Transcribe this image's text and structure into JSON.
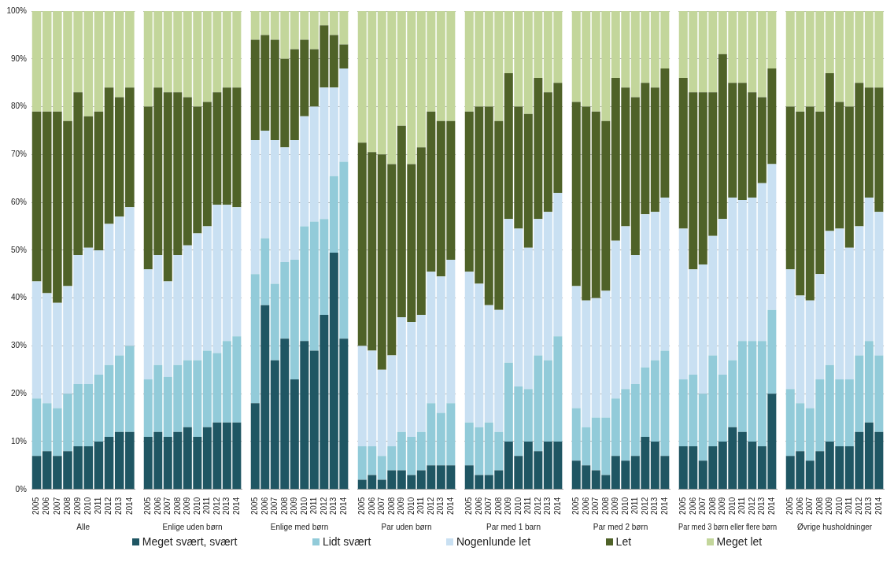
{
  "chart_data": [
    {
      "type": "bar",
      "stacked": true,
      "xlabel": "Alle",
      "categories": [
        "2005",
        "2006",
        "2007",
        "2008",
        "2009",
        "2010",
        "2011",
        "2012",
        "2013",
        "2014"
      ],
      "ylim": [
        0,
        100
      ],
      "yticks": [
        {
          "value": 0,
          "label": "0%"
        },
        {
          "value": 10,
          "label": "10%"
        },
        {
          "value": 20,
          "label": "20%"
        },
        {
          "value": 30,
          "label": "30%"
        },
        {
          "value": 40,
          "label": "40%"
        },
        {
          "value": 50,
          "label": "50%"
        },
        {
          "value": 60,
          "label": "60%"
        },
        {
          "value": 70,
          "label": "70%"
        },
        {
          "value": 80,
          "label": "80%"
        },
        {
          "value": 90,
          "label": "90%"
        },
        {
          "value": 100,
          "label": "100%"
        }
      ],
      "grid": "y",
      "legend": "bottom",
      "series": [
        {
          "name": "Meget svært, svært",
          "color": "#1f5663",
          "values": [
            7,
            8,
            7,
            8,
            9,
            9,
            10,
            11,
            12,
            12
          ]
        },
        {
          "name": "Lidt svært",
          "color": "#92cbd9",
          "values": [
            12,
            10,
            10,
            12,
            13,
            13,
            14,
            15,
            16,
            18
          ]
        },
        {
          "name": "Nogenlunde let",
          "color": "#c9e0f2",
          "values": [
            24.5,
            23,
            22,
            22.5,
            27,
            28.5,
            26,
            29.5,
            29,
            29
          ]
        },
        {
          "name": "Let",
          "color": "#4f6228",
          "values": [
            35.5,
            38,
            40,
            34.5,
            34,
            27.5,
            29,
            28.5,
            25,
            25
          ]
        },
        {
          "name": "Meget let",
          "color": "#c3d69b",
          "values": [
            21,
            21,
            21,
            23,
            17,
            22,
            21,
            16,
            18,
            16
          ]
        }
      ]
    },
    {
      "type": "bar",
      "stacked": true,
      "xlabel": "Enlige uden børn",
      "categories": [
        "2005",
        "2006",
        "2007",
        "2008",
        "2009",
        "2010",
        "2011",
        "2012",
        "2013",
        "2014"
      ],
      "ylim": [
        0,
        100
      ],
      "yticks": [
        0,
        10,
        20,
        30,
        40,
        50,
        60,
        70,
        80,
        90,
        100
      ],
      "tick_labels": "x",
      "grid": "y",
      "series": [
        {
          "color": "#1f5663",
          "values": [
            11,
            12,
            11,
            12,
            13,
            11,
            13,
            14,
            14,
            14
          ]
        },
        {
          "color": "#92cbd9",
          "values": [
            12,
            14,
            12.5,
            14,
            14,
            16,
            16,
            14.5,
            17,
            18
          ]
        },
        {
          "color": "#c9e0f2",
          "values": [
            23,
            23,
            20,
            23,
            24,
            26.5,
            26,
            31,
            28.5,
            27
          ]
        },
        {
          "color": "#4f6228",
          "values": [
            34,
            35,
            39.5,
            34,
            31,
            26.5,
            26,
            23.5,
            24.5,
            25
          ]
        },
        {
          "color": "#c3d69b",
          "values": [
            20,
            16,
            17,
            17,
            18,
            20,
            19,
            17,
            16,
            16
          ]
        }
      ]
    },
    {
      "type": "bar",
      "stacked": true,
      "xlabel": "Enlige med børn",
      "categories": [
        "2005",
        "2006",
        "2007",
        "2008",
        "2009",
        "2010",
        "2011",
        "2012",
        "2013",
        "2014"
      ],
      "ylim": [
        0,
        100
      ],
      "yticks": [
        0,
        10,
        20,
        30,
        40,
        50,
        60,
        70,
        80,
        90,
        100
      ],
      "tick_labels": "x",
      "grid": "y",
      "series": [
        {
          "color": "#1f5663",
          "values": [
            18,
            38.5,
            27,
            31.5,
            23,
            31,
            29,
            36.5,
            49.5,
            31.5
          ]
        },
        {
          "color": "#92cbd9",
          "values": [
            27,
            14,
            16,
            16,
            25,
            24,
            27,
            20,
            16,
            37
          ]
        },
        {
          "color": "#c9e0f2",
          "values": [
            28,
            22.5,
            30,
            24,
            25,
            23,
            24,
            27.5,
            18.5,
            19.5
          ]
        },
        {
          "color": "#4f6228",
          "values": [
            21,
            20,
            21,
            18.5,
            19,
            16,
            12,
            13,
            11,
            5
          ]
        },
        {
          "color": "#c3d69b",
          "values": [
            6,
            5,
            6,
            10,
            8,
            6,
            8,
            3,
            5,
            7
          ]
        }
      ]
    },
    {
      "type": "bar",
      "stacked": true,
      "xlabel": "Par uden børn",
      "categories": [
        "2005",
        "2006",
        "2007",
        "2008",
        "2009",
        "2010",
        "2011",
        "2012",
        "2013",
        "2014"
      ],
      "ylim": [
        0,
        100
      ],
      "yticks": [
        0,
        10,
        20,
        30,
        40,
        50,
        60,
        70,
        80,
        90,
        100
      ],
      "tick_labels": "x",
      "grid": "y",
      "series": [
        {
          "color": "#1f5663",
          "values": [
            2,
            3,
            2,
            4,
            4,
            3,
            4,
            5,
            5,
            5
          ]
        },
        {
          "color": "#92cbd9",
          "values": [
            7,
            6,
            5,
            5,
            8,
            8,
            8,
            13,
            11,
            13
          ]
        },
        {
          "color": "#c9e0f2",
          "values": [
            21,
            20,
            18,
            19,
            24,
            24,
            24.5,
            27.5,
            28.5,
            30
          ]
        },
        {
          "color": "#4f6228",
          "values": [
            42.5,
            41.5,
            45,
            40,
            40,
            33,
            35,
            33.5,
            32.5,
            29
          ]
        },
        {
          "color": "#c3d69b",
          "values": [
            27.5,
            29.5,
            30,
            32,
            24,
            32,
            28.5,
            21,
            23,
            23
          ]
        }
      ]
    },
    {
      "type": "bar",
      "stacked": true,
      "xlabel": "Par med 1 barn",
      "categories": [
        "2005",
        "2006",
        "2007",
        "2008",
        "2009",
        "2010",
        "2011",
        "2012",
        "2013",
        "2014"
      ],
      "ylim": [
        0,
        100
      ],
      "yticks": [
        0,
        10,
        20,
        30,
        40,
        50,
        60,
        70,
        80,
        90,
        100
      ],
      "tick_labels": "x",
      "grid": "y",
      "series": [
        {
          "color": "#1f5663",
          "values": [
            5,
            3,
            3,
            4,
            10,
            7,
            10,
            8,
            10,
            10
          ]
        },
        {
          "color": "#92cbd9",
          "values": [
            9,
            10,
            11,
            8,
            16.5,
            14.5,
            11,
            20,
            17,
            22
          ]
        },
        {
          "color": "#c9e0f2",
          "values": [
            31.5,
            30,
            24.5,
            25.5,
            30,
            33,
            29.5,
            28.5,
            31,
            30
          ]
        },
        {
          "color": "#4f6228",
          "values": [
            33.5,
            37,
            41.5,
            39.5,
            30.5,
            25.5,
            28,
            29.5,
            25,
            23
          ]
        },
        {
          "color": "#c3d69b",
          "values": [
            21,
            20,
            20,
            23,
            13,
            20,
            21.5,
            14,
            17,
            15
          ]
        }
      ]
    },
    {
      "type": "bar",
      "stacked": true,
      "xlabel": "Par med 2 børn",
      "categories": [
        "2005",
        "2006",
        "2007",
        "2008",
        "2009",
        "2010",
        "2011",
        "2012",
        "2013",
        "2014"
      ],
      "ylim": [
        0,
        100
      ],
      "yticks": [
        0,
        10,
        20,
        30,
        40,
        50,
        60,
        70,
        80,
        90,
        100
      ],
      "tick_labels": "x",
      "grid": "y",
      "series": [
        {
          "color": "#1f5663",
          "values": [
            6,
            5,
            4,
            3,
            7,
            6,
            7,
            11,
            10,
            7
          ]
        },
        {
          "color": "#92cbd9",
          "values": [
            11,
            8,
            11,
            12,
            12,
            15,
            15,
            14.5,
            17,
            22
          ]
        },
        {
          "color": "#c9e0f2",
          "values": [
            25.5,
            26.5,
            25,
            26.5,
            33,
            34,
            27,
            32,
            31,
            32
          ]
        },
        {
          "color": "#4f6228",
          "values": [
            38.5,
            40.5,
            39,
            35.5,
            34,
            29,
            33,
            27.5,
            26,
            27
          ]
        },
        {
          "color": "#c3d69b",
          "values": [
            19,
            20,
            21,
            23,
            14,
            16,
            18,
            15,
            16,
            12
          ]
        }
      ]
    },
    {
      "type": "bar",
      "stacked": true,
      "xlabel": "Par med 3 børn eller flere børn",
      "categories": [
        "2005",
        "2006",
        "2007",
        "2008",
        "2009",
        "2010",
        "2011",
        "2012",
        "2013",
        "2014"
      ],
      "ylim": [
        0,
        100
      ],
      "yticks": [
        0,
        10,
        20,
        30,
        40,
        50,
        60,
        70,
        80,
        90,
        100
      ],
      "tick_labels": "x",
      "grid": "y",
      "series": [
        {
          "color": "#1f5663",
          "values": [
            9,
            9,
            6,
            9,
            10,
            13,
            12,
            10,
            9,
            20
          ]
        },
        {
          "color": "#92cbd9",
          "values": [
            14,
            15,
            14,
            19,
            14,
            14,
            19,
            21,
            22,
            17.5
          ]
        },
        {
          "color": "#c9e0f2",
          "values": [
            31.5,
            22,
            27,
            25,
            32.5,
            34,
            29.5,
            30,
            33,
            30.5
          ]
        },
        {
          "color": "#4f6228",
          "values": [
            31.5,
            37,
            36,
            30,
            34.5,
            24,
            24.5,
            22,
            18,
            20
          ]
        },
        {
          "color": "#c3d69b",
          "values": [
            14,
            17,
            17,
            17,
            9,
            15,
            15,
            17,
            18,
            12
          ]
        }
      ]
    },
    {
      "type": "bar",
      "stacked": true,
      "xlabel": "Øvrige husholdninger",
      "categories": [
        "2005",
        "2006",
        "2007",
        "2008",
        "2009",
        "2010",
        "2011",
        "2012",
        "2013",
        "2014"
      ],
      "ylim": [
        0,
        100
      ],
      "yticks": [
        0,
        10,
        20,
        30,
        40,
        50,
        60,
        70,
        80,
        90,
        100
      ],
      "tick_labels": "x",
      "grid": "y",
      "series": [
        {
          "color": "#1f5663",
          "values": [
            7,
            8,
            6,
            8,
            10,
            9,
            9,
            12,
            14,
            12
          ]
        },
        {
          "color": "#92cbd9",
          "values": [
            14,
            10,
            11,
            15,
            16,
            14,
            14,
            16,
            17,
            16
          ]
        },
        {
          "color": "#c9e0f2",
          "values": [
            25,
            22.5,
            22.5,
            22,
            28,
            31.5,
            27.5,
            27,
            30,
            30
          ]
        },
        {
          "color": "#4f6228",
          "values": [
            34,
            38.5,
            40.5,
            34,
            33,
            26.5,
            29.5,
            30,
            23,
            26
          ]
        },
        {
          "color": "#c3d69b",
          "values": [
            20,
            21,
            20,
            21,
            13,
            19,
            20,
            15,
            16,
            16
          ]
        }
      ]
    }
  ]
}
